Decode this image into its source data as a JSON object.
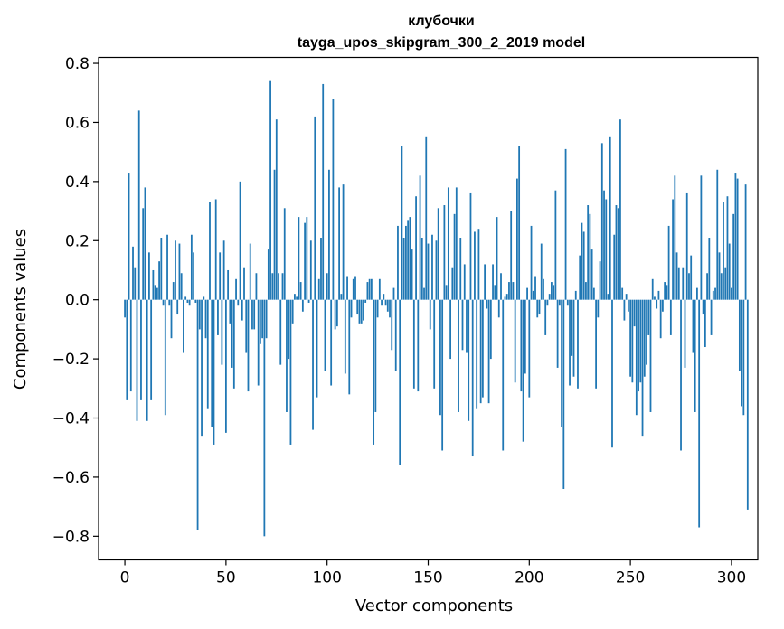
{
  "chart_data": {
    "type": "bar",
    "title": "клубочки",
    "subtitle": "tayga_upos_skipgram_300_2_2019 model",
    "xlabel": "Vector components",
    "ylabel": "Components values",
    "xlim": [
      -13,
      313
    ],
    "ylim": [
      -0.88,
      0.82
    ],
    "xticks": [
      0,
      50,
      100,
      150,
      200,
      250,
      300
    ],
    "xtick_labels": [
      "0",
      "50",
      "100",
      "150",
      "200",
      "250",
      "300"
    ],
    "yticks": [
      -0.8,
      -0.6,
      -0.4,
      -0.2,
      0.0,
      0.2,
      0.4,
      0.6,
      0.8
    ],
    "ytick_labels": [
      "−0.8",
      "−0.6",
      "−0.4",
      "−0.2",
      "0.0",
      "0.2",
      "0.4",
      "0.6",
      "0.8"
    ],
    "grid": false,
    "bar_color": "#1f77b4",
    "values": [
      -0.06,
      -0.34,
      0.43,
      -0.31,
      0.18,
      0.11,
      -0.41,
      0.64,
      -0.34,
      0.31,
      0.38,
      -0.41,
      0.16,
      -0.34,
      0.1,
      0.05,
      0.04,
      0.13,
      0.21,
      -0.02,
      -0.39,
      0.22,
      -0.02,
      -0.13,
      0.06,
      0.2,
      -0.05,
      0.19,
      0.09,
      -0.18,
      0.01,
      -0.01,
      -0.02,
      0.22,
      0.16,
      -0.01,
      -0.78,
      -0.1,
      -0.46,
      0.01,
      -0.13,
      -0.37,
      0.33,
      -0.43,
      -0.49,
      0.34,
      -0.12,
      0.16,
      -0.22,
      0.2,
      -0.45,
      0.1,
      -0.08,
      -0.23,
      -0.3,
      0.07,
      -0.02,
      0.4,
      -0.07,
      0.11,
      -0.18,
      -0.31,
      0.19,
      -0.1,
      -0.1,
      0.09,
      -0.29,
      -0.15,
      -0.13,
      -0.8,
      -0.13,
      0.17,
      0.74,
      0.09,
      0.44,
      0.61,
      0.09,
      -0.22,
      0.09,
      0.31,
      -0.38,
      -0.2,
      -0.49,
      -0.08,
      0.02,
      0.01,
      0.28,
      0.06,
      -0.04,
      0.26,
      0.28,
      -0.01,
      0.2,
      -0.44,
      0.62,
      -0.33,
      0.07,
      0.21,
      0.73,
      -0.24,
      0.09,
      0.44,
      -0.29,
      0.68,
      -0.1,
      -0.09,
      0.38,
      0.02,
      0.39,
      -0.25,
      0.08,
      -0.32,
      -0.06,
      0.07,
      0.08,
      -0.05,
      -0.08,
      -0.08,
      -0.07,
      -0.01,
      0.06,
      0.07,
      0.07,
      -0.49,
      -0.38,
      -0.06,
      0.07,
      -0.02,
      0.02,
      -0.02,
      -0.04,
      -0.06,
      -0.17,
      0.04,
      -0.24,
      0.25,
      -0.56,
      0.52,
      0.21,
      0.25,
      0.27,
      0.28,
      0.17,
      -0.3,
      0.35,
      -0.31,
      0.42,
      0.21,
      0.04,
      0.55,
      0.19,
      -0.1,
      0.22,
      -0.3,
      0.2,
      0.31,
      -0.39,
      -0.51,
      0.32,
      0.05,
      0.38,
      -0.2,
      0.11,
      0.29,
      0.38,
      -0.38,
      0.21,
      -0.17,
      0.12,
      -0.18,
      -0.41,
      0.36,
      -0.53,
      0.23,
      -0.37,
      0.24,
      -0.35,
      -0.33,
      0.12,
      -0.03,
      -0.35,
      -0.2,
      0.12,
      0.05,
      0.28,
      -0.06,
      0.09,
      -0.51,
      0.01,
      0.02,
      0.06,
      0.3,
      0.06,
      -0.28,
      0.41,
      0.52,
      -0.31,
      -0.48,
      -0.25,
      0.04,
      -0.33,
      0.25,
      0.03,
      0.08,
      -0.06,
      -0.05,
      0.19,
      0.07,
      -0.12,
      -0.02,
      0.02,
      0.06,
      0.05,
      0.37,
      -0.23,
      -0.02,
      -0.43,
      -0.64,
      0.51,
      -0.02,
      -0.29,
      -0.19,
      -0.26,
      0.03,
      -0.3,
      0.15,
      0.26,
      0.23,
      0.06,
      0.32,
      0.29,
      0.17,
      0.04,
      -0.3,
      -0.06,
      0.13,
      0.53,
      0.37,
      0.34,
      0.02,
      0.55,
      -0.5,
      0.22,
      0.32,
      0.31,
      0.61,
      0.04,
      -0.07,
      0.02,
      -0.04,
      -0.26,
      -0.28,
      -0.09,
      -0.39,
      -0.31,
      -0.28,
      -0.46,
      -0.26,
      -0.22,
      -0.12,
      -0.38,
      0.07,
      0.01,
      -0.03,
      0.03,
      -0.13,
      -0.04,
      0.06,
      0.05,
      0.25,
      -0.12,
      0.34,
      0.42,
      0.16,
      0.11,
      -0.51,
      0.11,
      -0.23,
      0.36,
      0.09,
      0.15,
      -0.18,
      -0.38,
      0.04,
      -0.77,
      0.42,
      -0.05,
      -0.16,
      0.09,
      0.21,
      -0.12,
      0.03,
      0.04,
      0.44,
      0.16,
      0.09,
      0.33,
      0.11,
      0.35,
      0.19,
      0.04,
      0.29,
      0.43,
      0.41,
      -0.24,
      -0.36,
      -0.39,
      0.39,
      -0.71
    ]
  }
}
